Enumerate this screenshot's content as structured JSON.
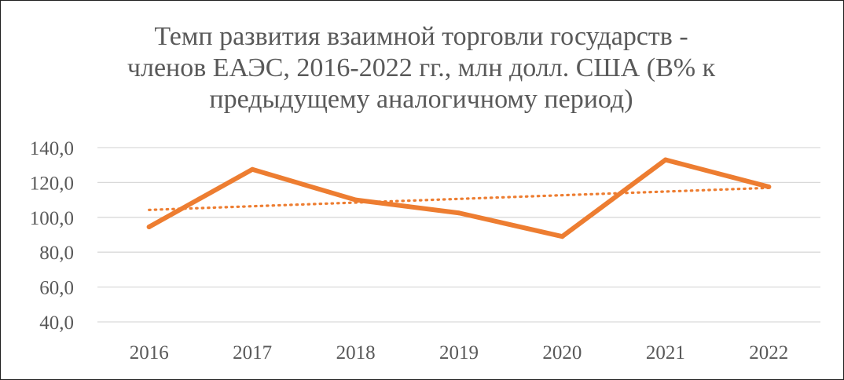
{
  "chart_data": {
    "type": "line",
    "title_lines": [
      "Темп развития взаимной торговли государств -",
      "членов ЕАЭС, 2016-2022 гг., млн долл. США (В% к",
      "предыдущему аналогичному период)"
    ],
    "categories": [
      "2016",
      "2017",
      "2018",
      "2019",
      "2020",
      "2021",
      "2022"
    ],
    "series": [
      {
        "values": [
          94.5,
          127.5,
          110.0,
          102.5,
          89.0,
          133.0,
          117.5
        ],
        "color": "#ed7d31",
        "style": "solid"
      }
    ],
    "trendline": {
      "kind": "linear",
      "color": "#ed7d31",
      "style": "dotted"
    },
    "yticks": [
      "40,0",
      "60,0",
      "80,0",
      "100,0",
      "120,0",
      "140,0"
    ],
    "ylim": [
      40,
      140
    ],
    "grid": true,
    "legend": "none"
  }
}
